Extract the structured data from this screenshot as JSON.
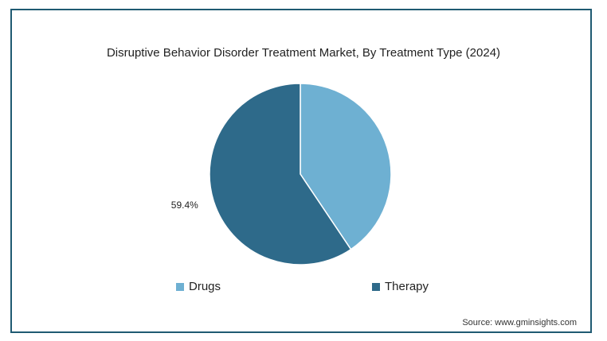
{
  "chart_data": {
    "type": "pie",
    "title": "Disruptive Behavior Disorder Treatment Market, By Treatment Type (2024)",
    "categories": [
      "Drugs",
      "Therapy"
    ],
    "values": [
      40.6,
      59.4
    ],
    "colors": [
      "#6eb0d2",
      "#2e6a8a"
    ],
    "data_labels": [
      "",
      "59.4%"
    ],
    "legend_position": "bottom"
  },
  "source": "Source: www.gminsights.com"
}
